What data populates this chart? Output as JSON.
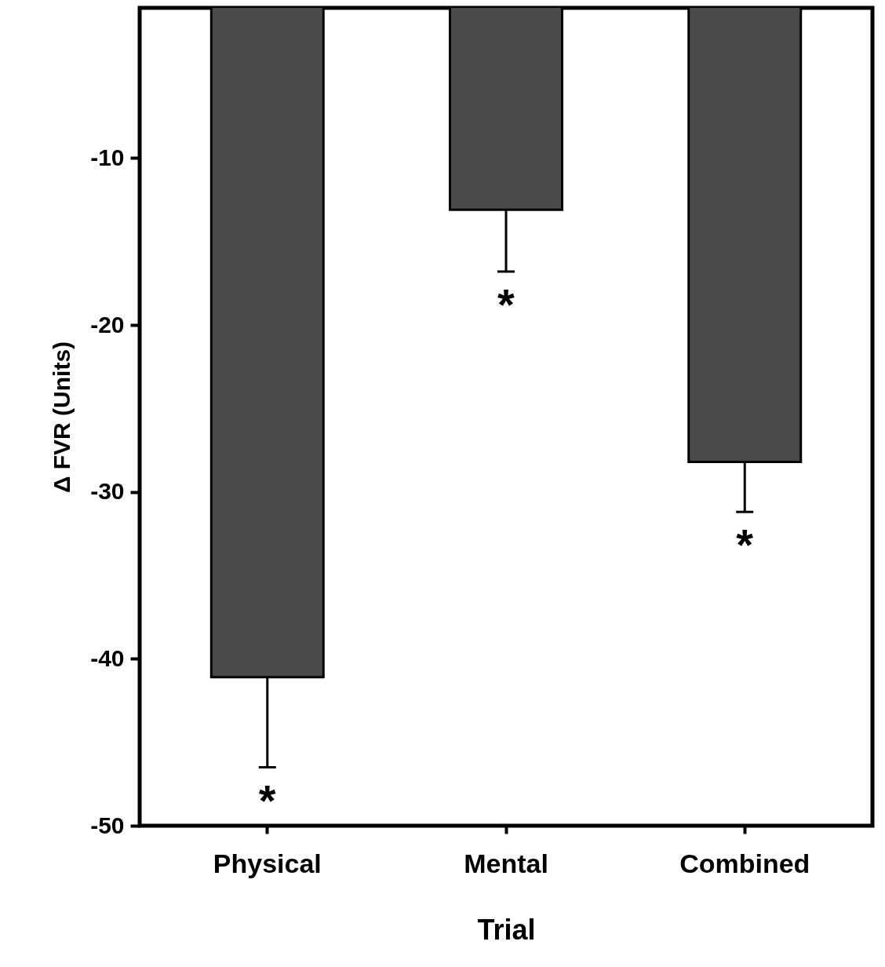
{
  "chart_data": {
    "type": "bar",
    "xlabel": "Trial",
    "ylabel": "Δ FVR (Units)",
    "categories": [
      "Physical",
      "Mental",
      "Combined"
    ],
    "values": [
      -41.1,
      -13.1,
      -28.2
    ],
    "errors": [
      [
        -46.5,
        -41.1
      ],
      [
        -16.8,
        -13.1
      ],
      [
        -31.2,
        -28.2
      ]
    ],
    "color": "#4a4a4a",
    "ylim": [
      -50,
      -1
    ],
    "yticks": [
      -50,
      -40,
      -30,
      -20,
      -10
    ],
    "grid": false,
    "annotations": [
      "*",
      "*",
      "*"
    ]
  }
}
